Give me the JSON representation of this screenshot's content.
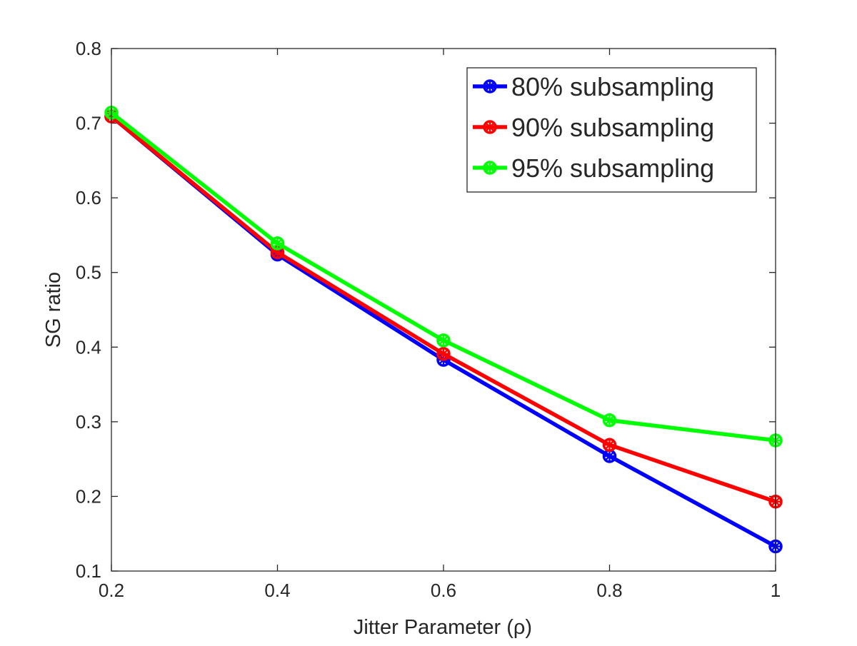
{
  "chart_data": {
    "type": "line",
    "title": "",
    "xlabel": "Jitter Parameter (ρ)",
    "ylabel": "SG ratio",
    "x": [
      0.2,
      0.4,
      0.6,
      0.8,
      1.0
    ],
    "xlim": [
      0.2,
      1.0
    ],
    "ylim": [
      0.1,
      0.8
    ],
    "xticks": [
      0.2,
      0.4,
      0.6,
      0.8,
      1.0
    ],
    "xtick_labels": [
      "0.2",
      "0.4",
      "0.6",
      "0.8",
      "1"
    ],
    "yticks": [
      0.1,
      0.2,
      0.3,
      0.4,
      0.5,
      0.6,
      0.7,
      0.8
    ],
    "ytick_labels": [
      "0.1",
      "0.2",
      "0.3",
      "0.4",
      "0.5",
      "0.6",
      "0.7",
      "0.8"
    ],
    "grid": false,
    "legend_position": "top-right",
    "series": [
      {
        "name": "80% subsampling",
        "color": "#0000ff",
        "values": [
          0.709,
          0.524,
          0.383,
          0.254,
          0.133
        ]
      },
      {
        "name": "90% subsampling",
        "color": "#ff0000",
        "values": [
          0.709,
          0.527,
          0.391,
          0.269,
          0.193
        ]
      },
      {
        "name": "95% subsampling",
        "color": "#00ff00",
        "values": [
          0.714,
          0.539,
          0.409,
          0.302,
          0.275
        ]
      }
    ]
  }
}
